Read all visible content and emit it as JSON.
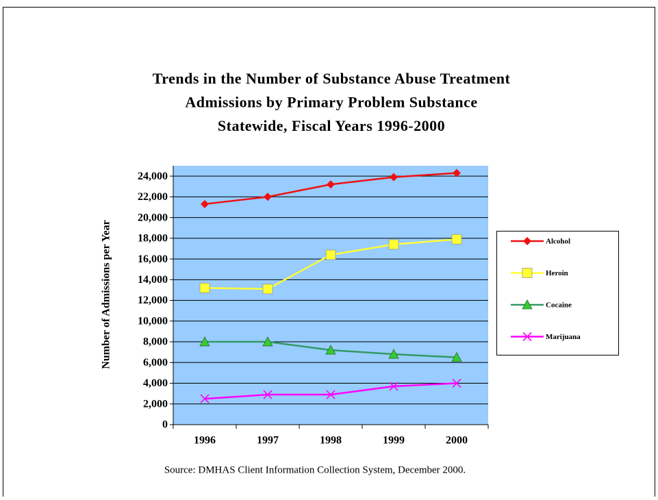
{
  "chart_data": {
    "type": "line",
    "title": [
      "Trends in the Number of Substance Abuse Treatment",
      "Admissions by Primary Problem Substance",
      "Statewide, Fiscal Years 1996-2000"
    ],
    "y_label": "Number of Admissions per Year",
    "source": "Source: DMHAS Client Information Collection System, December 2000.",
    "categories": [
      "1996",
      "1997",
      "1998",
      "1999",
      "2000"
    ],
    "series": [
      {
        "name": "Alcohol",
        "color": "#ee1111",
        "marker": "diamond",
        "marker_color": "#ee1111",
        "values": [
          21300,
          22000,
          23200,
          23900,
          24300
        ]
      },
      {
        "name": "Heroin",
        "color": "#ffff33",
        "marker": "square",
        "marker_color": "#ffff33",
        "values": [
          13200,
          13100,
          16400,
          17400,
          17900
        ]
      },
      {
        "name": "Cocaine",
        "color": "#339966",
        "marker": "triangle",
        "marker_color": "#33cc33",
        "values": [
          8000,
          8000,
          7200,
          6800,
          6500
        ]
      },
      {
        "name": "Marijuana",
        "color": "#ff00ff",
        "marker": "x",
        "marker_color": "#ff00ff",
        "values": [
          2500,
          2900,
          2900,
          3700,
          4000
        ]
      }
    ],
    "ylim": [
      0,
      25000
    ],
    "yticks": [
      0,
      {
        "value": 2000,
        "label": "2,000"
      },
      {
        "value": 4000,
        "label": "4,000"
      },
      {
        "value": 6000,
        "label": "6,000"
      },
      {
        "value": 8000,
        "label": "8,000"
      },
      {
        "value": 10000,
        "label": "10,000"
      },
      {
        "value": 12000,
        "label": "12,000"
      },
      {
        "value": 14000,
        "label": "14,000"
      },
      {
        "value": 16000,
        "label": "16,000"
      },
      {
        "value": 18000,
        "label": "18,000"
      },
      {
        "value": 20000,
        "label": "20,000"
      },
      {
        "value": 22000,
        "label": "22,000"
      },
      {
        "value": 24000,
        "label": "24,000"
      }
    ],
    "grid": true,
    "plot_background": "#99ccff",
    "legend": "right"
  }
}
